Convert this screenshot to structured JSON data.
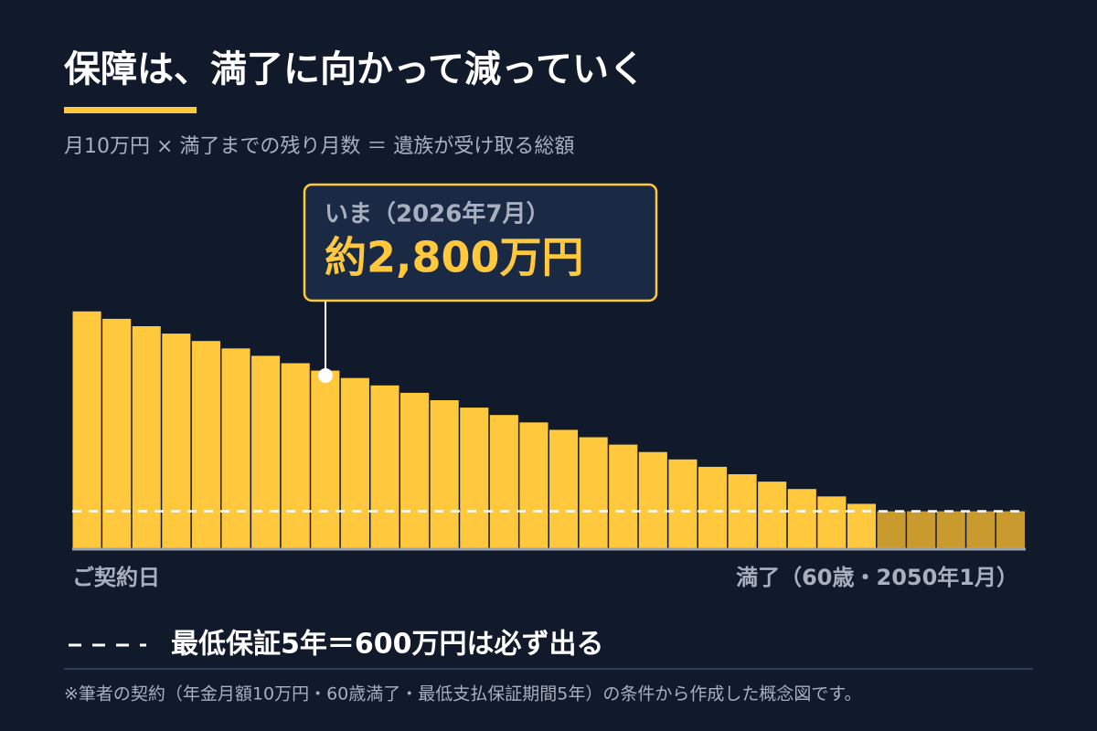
{
  "chart_data": {
    "type": "bar",
    "title": "保障は、満了に向かって減っていく",
    "subtitle": "月10万円 × 満了までの残り月数 ＝ 遺族が受け取る総額",
    "categories": [
      "ご契約日",
      null,
      null,
      null,
      null,
      null,
      null,
      null,
      null,
      null,
      null,
      null,
      null,
      null,
      null,
      null,
      null,
      null,
      null,
      null,
      null,
      null,
      null,
      null,
      null,
      null,
      null,
      null,
      null,
      null,
      null,
      "満了（60歳・2050年1月）"
    ],
    "values": [
      3840,
      3720,
      3600,
      3480,
      3360,
      3240,
      3120,
      3000,
      2880,
      2760,
      2640,
      2520,
      2400,
      2280,
      2160,
      2040,
      1920,
      1800,
      1680,
      1560,
      1440,
      1320,
      1200,
      1080,
      960,
      840,
      720,
      600,
      600,
      600,
      600,
      600
    ],
    "colors": [
      "#FFC83D",
      "#FFC83D",
      "#FFC83D",
      "#FFC83D",
      "#FFC83D",
      "#FFC83D",
      "#FFC83D",
      "#FFC83D",
      "#FFC83D",
      "#FFC83D",
      "#FFC83D",
      "#FFC83D",
      "#FFC83D",
      "#FFC83D",
      "#FFC83D",
      "#FFC83D",
      "#FFC83D",
      "#FFC83D",
      "#FFC83D",
      "#FFC83D",
      "#FFC83D",
      "#FFC83D",
      "#FFC83D",
      "#FFC83D",
      "#FFC83D",
      "#FFC83D",
      "#FFC83D",
      "#C99A2E",
      "#C99A2E",
      "#C99A2E",
      "#C99A2E",
      "#C99A2E"
    ],
    "ylim": [
      0,
      4000
    ],
    "reference_line": {
      "value": 600,
      "label": "最低保証5年＝600万円は必ず出る"
    },
    "annotation": {
      "at": 8,
      "title": "いま（2026年7月）",
      "value": 2800,
      "value_label": "約2,800万円"
    },
    "footnote": "※筆者の契約（年金月額10万円・60歳満了・最低支払保証期間5年）の条件から作成した概念図です。"
  }
}
